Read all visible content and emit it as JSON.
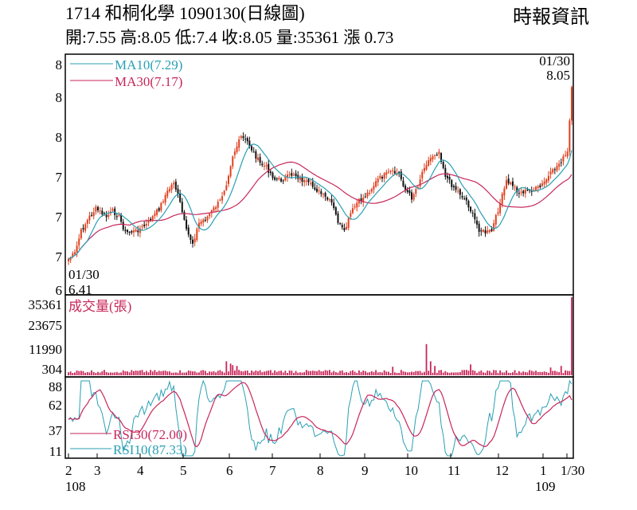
{
  "header": {
    "title_line": "1714  和桐化學 1090130(日線圖)",
    "quote_line": "開:7.55 高:8.05 低:7.4 收:8.05 量:35361 漲 0.73",
    "source": "時報資訊"
  },
  "chart_data": [
    {
      "type": "line",
      "panel": "price",
      "title": "",
      "y_tick_labels": [
        "8",
        "8",
        "8",
        "7",
        "7",
        "7",
        "6"
      ],
      "ma_legend": [
        "MA10(7.29)",
        "MA30(7.17)"
      ],
      "annotations": [
        {
          "date": "01/30",
          "value": "8.05"
        },
        {
          "date": "01/30",
          "value": "6.41"
        }
      ],
      "x_months": [
        "2",
        "3",
        "4",
        "5",
        "6",
        "7",
        "8",
        "9",
        "10",
        "11",
        "12",
        "1",
        "1/30"
      ],
      "x_years": [
        "108",
        "109"
      ],
      "colors": {
        "ma10": "#2a9fb4",
        "ma30": "#c8265a",
        "up": "#e0401f",
        "down": "#111111"
      }
    },
    {
      "type": "bar",
      "panel": "volume",
      "label": "成交量(張)",
      "y_tick_labels": [
        "35361",
        "23675",
        "11990",
        "304"
      ],
      "max_value": 35361,
      "color": "#c8265a"
    },
    {
      "type": "line",
      "panel": "rsi",
      "y_tick_labels": [
        "88",
        "62",
        "37",
        "11"
      ],
      "legend": [
        "RSI30(72.00)",
        "RSI10(87.33)"
      ],
      "colors": {
        "rsi30": "#c8265a",
        "rsi10": "#2a9fb4"
      }
    }
  ]
}
